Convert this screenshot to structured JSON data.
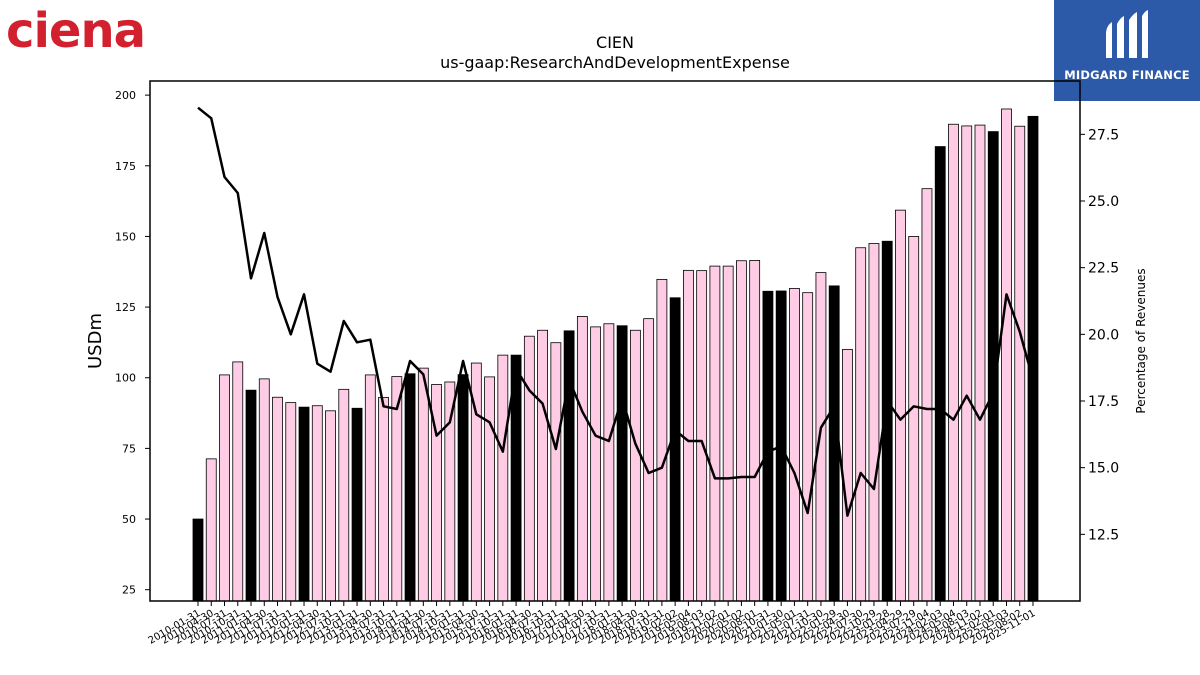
{
  "logos": {
    "left_brand": "ciena",
    "left_brand_color": "#d3202f",
    "right_brand": "MIDGARD FINANCE",
    "right_brand_bg": "#2d5aa8"
  },
  "chart_data": {
    "type": "bar",
    "title": "CIEN",
    "subtitle": "us-gaap:ResearchAndDevelopmentExpense",
    "ylabel": "USDm",
    "y2label": "Percentage of Revenues",
    "ylim": [
      21,
      205
    ],
    "y2lim": [
      10.0,
      29.5
    ],
    "yticks": [
      25,
      50,
      75,
      100,
      125,
      150,
      175,
      200
    ],
    "y2ticks": [
      "12.5",
      "15.0",
      "17.5",
      "20.0",
      "22.5",
      "25.0",
      "27.5"
    ],
    "colors": {
      "annual_bar": "#000000",
      "quarter_bar": "#ffcce6",
      "line": "#000000"
    },
    "categories": [
      "2010-01-31",
      "2010-04-30",
      "2010-07-31",
      "2010-10-31",
      "2011-01-31",
      "2011-04-30",
      "2011-07-31",
      "2011-10-31",
      "2012-01-31",
      "2012-04-30",
      "2012-07-31",
      "2012-10-31",
      "2013-01-31",
      "2013-04-30",
      "2013-07-31",
      "2013-10-31",
      "2014-01-31",
      "2014-04-30",
      "2014-07-31",
      "2014-10-31",
      "2015-01-31",
      "2015-04-30",
      "2015-07-31",
      "2015-10-31",
      "2016-01-31",
      "2016-04-30",
      "2016-07-31",
      "2016-10-31",
      "2017-01-31",
      "2017-04-30",
      "2017-07-31",
      "2017-10-31",
      "2018-01-31",
      "2018-04-30",
      "2018-07-31",
      "2018-10-31",
      "2019-02-02",
      "2019-05-04",
      "2019-08-03",
      "2019-11-02",
      "2020-02-01",
      "2020-05-02",
      "2020-08-01",
      "2020-10-31",
      "2021-01-30",
      "2021-05-01",
      "2021-07-31",
      "2021-10-30",
      "2022-01-29",
      "2022-04-30",
      "2022-07-30",
      "2022-10-29",
      "2023-01-28",
      "2023-04-29",
      "2023-07-29",
      "2023-11-04",
      "2024-02-03",
      "2024-05-04",
      "2024-08-03",
      "2024-11-02",
      "2025-02-01",
      "2025-05-03",
      "2025-08-02",
      "2025-11-01"
    ],
    "values": [
      50,
      71.3,
      101,
      105.6,
      95.6,
      99.6,
      93.1,
      91.2,
      89.6,
      90.1,
      88.3,
      95.9,
      89.2,
      101,
      93,
      100.4,
      101.4,
      103.4,
      97.6,
      98.5,
      101.1,
      105.2,
      100.3,
      108,
      108,
      114.7,
      116.8,
      112.4,
      116.6,
      121.7,
      118,
      119.1,
      118.4,
      116.8,
      120.9,
      134.8,
      128.3,
      138,
      137.9,
      139.5,
      139.5,
      141.4,
      141.5,
      130.6,
      130.7,
      131.6,
      130.1,
      137.2,
      132.5,
      110,
      146,
      147.5,
      148.3,
      159.3,
      150,
      166.9,
      181.8,
      189.7,
      189.1,
      189.4,
      187.1,
      195.1,
      189,
      192.5
    ],
    "bar_kind": [
      "annual",
      "quarter",
      "quarter",
      "quarter",
      "annual",
      "quarter",
      "quarter",
      "quarter",
      "annual",
      "quarter",
      "quarter",
      "quarter",
      "annual",
      "quarter",
      "quarter",
      "quarter",
      "annual",
      "quarter",
      "quarter",
      "quarter",
      "annual",
      "quarter",
      "quarter",
      "quarter",
      "annual",
      "quarter",
      "quarter",
      "quarter",
      "annual",
      "quarter",
      "quarter",
      "quarter",
      "annual",
      "quarter",
      "quarter",
      "quarter",
      "annual",
      "quarter",
      "quarter",
      "quarter",
      "quarter",
      "quarter",
      "quarter",
      "annual",
      "annual",
      "quarter",
      "quarter",
      "quarter",
      "annual",
      "quarter",
      "quarter",
      "quarter",
      "annual",
      "quarter",
      "quarter",
      "quarter",
      "annual",
      "quarter",
      "quarter",
      "quarter",
      "annual",
      "quarter",
      "quarter",
      "annual"
    ],
    "pct_of_revenues": [
      28.5,
      28.1,
      25.9,
      25.3,
      22.1,
      23.8,
      21.4,
      20.0,
      21.5,
      18.9,
      18.6,
      20.5,
      19.7,
      19.8,
      17.3,
      17.2,
      19.0,
      18.5,
      16.2,
      16.7,
      19.0,
      17.0,
      16.7,
      15.6,
      18.7,
      17.9,
      17.4,
      15.7,
      18.3,
      17.1,
      16.2,
      16.0,
      17.6,
      15.9,
      14.8,
      15.0,
      16.4,
      16.0,
      16.0,
      14.6,
      14.6,
      14.65,
      14.65,
      15.6,
      15.8,
      14.8,
      13.3,
      16.5,
      17.3,
      13.2,
      14.8,
      14.2,
      17.5,
      16.8,
      17.3,
      17.2,
      17.2,
      16.8,
      17.7,
      16.8,
      17.8,
      21.5,
      20.1,
      18.3
    ]
  }
}
